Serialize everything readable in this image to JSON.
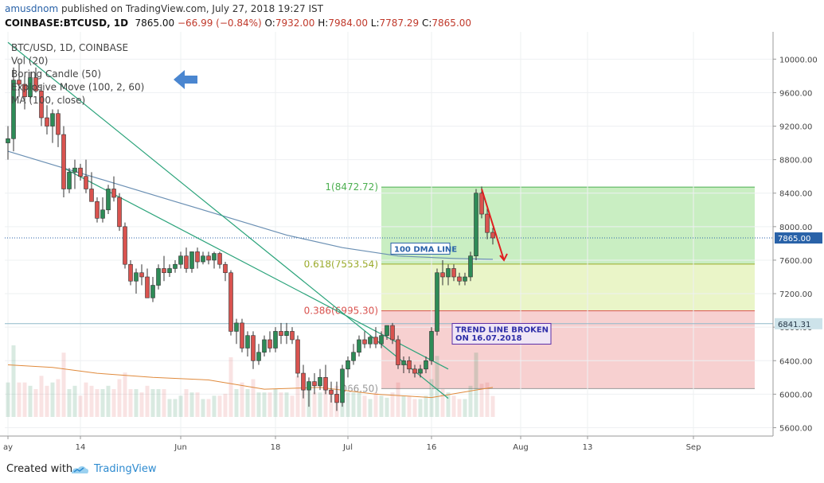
{
  "header": {
    "user": "amusdnom",
    "published": "published on TradingView.com, July 27, 2018 19:27 IST",
    "symbol_line": "COINBASE:BTCUSD, 1D",
    "last": "7865.00",
    "change": "−66.99 (−0.84%)",
    "o_label": "O:",
    "o_value": "7932.00",
    "h_label": "H:",
    "h_value": "7984.00",
    "l_label": "L:",
    "l_value": "7787.29",
    "c_label": "C:",
    "c_value": "7865.00"
  },
  "legend": [
    "BTC/USD, 1D, COINBASE",
    "Vol (20)",
    "Boring Candle (50)",
    "Explosive Move (100, 2, 60)",
    "MA (100, close)"
  ],
  "footer": {
    "created_with": "Created with",
    "brand": "TradingView"
  },
  "colors": {
    "up": "#2e8b57",
    "down": "#d9534f",
    "accent": "#2962a8",
    "ma": "#6a8fb3",
    "volma": "#e08a3c",
    "trend": "#2aa37a",
    "fib_green": "#c9eec2",
    "fib_yellow": "#eaf5c8",
    "fib_red": "#f7d0d0"
  },
  "chart_data": {
    "type": "candlestick",
    "y_ticks": [
      "10000.00",
      "9600.00",
      "9200.00",
      "8800.00",
      "8400.00",
      "8000.00",
      "7600.00",
      "7200.00",
      "6800.00",
      "6400.00",
      "6000.00",
      "5600.00"
    ],
    "ylim": [
      5500,
      10250
    ],
    "x_labels": [
      {
        "label": "ay",
        "day": 0
      },
      {
        "label": "14",
        "day": 13
      },
      {
        "label": "Jun",
        "day": 31
      },
      {
        "label": "18",
        "day": 48
      },
      {
        "label": "Jul",
        "day": 61
      },
      {
        "label": "16",
        "day": 76
      },
      {
        "label": "Aug",
        "day": 92
      },
      {
        "label": "13",
        "day": 104
      },
      {
        "label": "Sep",
        "day": 123
      }
    ],
    "candles": [
      {
        "o": 9000,
        "h": 9200,
        "l": 8800,
        "c": 9050
      },
      {
        "o": 9050,
        "h": 9900,
        "l": 8900,
        "c": 9750
      },
      {
        "o": 9750,
        "h": 9950,
        "l": 9550,
        "c": 9700
      },
      {
        "o": 9700,
        "h": 9800,
        "l": 9400,
        "c": 9550
      },
      {
        "o": 9550,
        "h": 9850,
        "l": 9500,
        "c": 9780
      },
      {
        "o": 9780,
        "h": 9900,
        "l": 9600,
        "c": 9620
      },
      {
        "o": 9620,
        "h": 9700,
        "l": 9200,
        "c": 9300
      },
      {
        "o": 9300,
        "h": 9450,
        "l": 9100,
        "c": 9200
      },
      {
        "o": 9200,
        "h": 9400,
        "l": 9000,
        "c": 9350
      },
      {
        "o": 9350,
        "h": 9400,
        "l": 8950,
        "c": 9100
      },
      {
        "o": 9100,
        "h": 9200,
        "l": 8350,
        "c": 8450
      },
      {
        "o": 8450,
        "h": 8700,
        "l": 8400,
        "c": 8650
      },
      {
        "o": 8650,
        "h": 8800,
        "l": 8450,
        "c": 8700
      },
      {
        "o": 8700,
        "h": 8750,
        "l": 8550,
        "c": 8600
      },
      {
        "o": 8600,
        "h": 8800,
        "l": 8400,
        "c": 8450
      },
      {
        "o": 8450,
        "h": 8650,
        "l": 8300,
        "c": 8300
      },
      {
        "o": 8300,
        "h": 8350,
        "l": 8050,
        "c": 8100
      },
      {
        "o": 8100,
        "h": 8350,
        "l": 8050,
        "c": 8200
      },
      {
        "o": 8200,
        "h": 8500,
        "l": 8150,
        "c": 8450
      },
      {
        "o": 8450,
        "h": 8600,
        "l": 8300,
        "c": 8350
      },
      {
        "o": 8350,
        "h": 8400,
        "l": 7950,
        "c": 8000
      },
      {
        "o": 8000,
        "h": 8050,
        "l": 7500,
        "c": 7550
      },
      {
        "o": 7550,
        "h": 7600,
        "l": 7300,
        "c": 7350
      },
      {
        "o": 7350,
        "h": 7500,
        "l": 7200,
        "c": 7450
      },
      {
        "o": 7450,
        "h": 7550,
        "l": 7300,
        "c": 7400
      },
      {
        "o": 7400,
        "h": 7500,
        "l": 7150,
        "c": 7150
      },
      {
        "o": 7150,
        "h": 7400,
        "l": 7100,
        "c": 7300
      },
      {
        "o": 7300,
        "h": 7550,
        "l": 7250,
        "c": 7500
      },
      {
        "o": 7500,
        "h": 7650,
        "l": 7350,
        "c": 7450
      },
      {
        "o": 7450,
        "h": 7550,
        "l": 7400,
        "c": 7500
      },
      {
        "o": 7500,
        "h": 7600,
        "l": 7450,
        "c": 7550
      },
      {
        "o": 7550,
        "h": 7700,
        "l": 7500,
        "c": 7650
      },
      {
        "o": 7650,
        "h": 7750,
        "l": 7450,
        "c": 7500
      },
      {
        "o": 7500,
        "h": 7700,
        "l": 7450,
        "c": 7700
      },
      {
        "o": 7700,
        "h": 7750,
        "l": 7500,
        "c": 7580
      },
      {
        "o": 7580,
        "h": 7700,
        "l": 7550,
        "c": 7650
      },
      {
        "o": 7650,
        "h": 7700,
        "l": 7550,
        "c": 7600
      },
      {
        "o": 7600,
        "h": 7700,
        "l": 7500,
        "c": 7680
      },
      {
        "o": 7680,
        "h": 7700,
        "l": 7500,
        "c": 7550
      },
      {
        "o": 7550,
        "h": 7580,
        "l": 7350,
        "c": 7450
      },
      {
        "o": 7450,
        "h": 7480,
        "l": 6700,
        "c": 6750
      },
      {
        "o": 6750,
        "h": 6900,
        "l": 6600,
        "c": 6850
      },
      {
        "o": 6850,
        "h": 6900,
        "l": 6500,
        "c": 6550
      },
      {
        "o": 6550,
        "h": 6750,
        "l": 6450,
        "c": 6700
      },
      {
        "o": 6700,
        "h": 6750,
        "l": 6300,
        "c": 6400
      },
      {
        "o": 6400,
        "h": 6600,
        "l": 6350,
        "c": 6500
      },
      {
        "o": 6500,
        "h": 6700,
        "l": 6450,
        "c": 6650
      },
      {
        "o": 6650,
        "h": 6750,
        "l": 6500,
        "c": 6550
      },
      {
        "o": 6550,
        "h": 6800,
        "l": 6500,
        "c": 6750
      },
      {
        "o": 6750,
        "h": 6850,
        "l": 6600,
        "c": 6700
      },
      {
        "o": 6700,
        "h": 6850,
        "l": 6600,
        "c": 6750
      },
      {
        "o": 6750,
        "h": 6800,
        "l": 6600,
        "c": 6650
      },
      {
        "o": 6650,
        "h": 6700,
        "l": 6200,
        "c": 6250
      },
      {
        "o": 6250,
        "h": 6350,
        "l": 5950,
        "c": 6050
      },
      {
        "o": 6050,
        "h": 6200,
        "l": 5850,
        "c": 6150
      },
      {
        "o": 6150,
        "h": 6250,
        "l": 6000,
        "c": 6100
      },
      {
        "o": 6100,
        "h": 6300,
        "l": 6050,
        "c": 6200
      },
      {
        "o": 6200,
        "h": 6350,
        "l": 6000,
        "c": 6050
      },
      {
        "o": 6050,
        "h": 6150,
        "l": 5900,
        "c": 6000
      },
      {
        "o": 6000,
        "h": 6150,
        "l": 5800,
        "c": 5900
      },
      {
        "o": 5900,
        "h": 6350,
        "l": 5850,
        "c": 6300
      },
      {
        "o": 6300,
        "h": 6450,
        "l": 6200,
        "c": 6400
      },
      {
        "o": 6400,
        "h": 6600,
        "l": 6350,
        "c": 6500
      },
      {
        "o": 6500,
        "h": 6700,
        "l": 6450,
        "c": 6650
      },
      {
        "o": 6650,
        "h": 6750,
        "l": 6550,
        "c": 6600
      },
      {
        "o": 6600,
        "h": 6700,
        "l": 6550,
        "c": 6680
      },
      {
        "o": 6680,
        "h": 6800,
        "l": 6550,
        "c": 6600
      },
      {
        "o": 6600,
        "h": 6750,
        "l": 6550,
        "c": 6700
      },
      {
        "o": 6700,
        "h": 6820,
        "l": 6650,
        "c": 6820
      },
      {
        "o": 6820,
        "h": 6850,
        "l": 6600,
        "c": 6650
      },
      {
        "o": 6650,
        "h": 6700,
        "l": 6300,
        "c": 6350
      },
      {
        "o": 6350,
        "h": 6450,
        "l": 6250,
        "c": 6400
      },
      {
        "o": 6400,
        "h": 6450,
        "l": 6250,
        "c": 6300
      },
      {
        "o": 6300,
        "h": 6350,
        "l": 6200,
        "c": 6250
      },
      {
        "o": 6250,
        "h": 6350,
        "l": 6200,
        "c": 6300
      },
      {
        "o": 6300,
        "h": 6450,
        "l": 6250,
        "c": 6400
      },
      {
        "o": 6400,
        "h": 6800,
        "l": 6350,
        "c": 6750
      },
      {
        "o": 6750,
        "h": 7500,
        "l": 6700,
        "c": 7450
      },
      {
        "o": 7450,
        "h": 7600,
        "l": 7300,
        "c": 7400
      },
      {
        "o": 7400,
        "h": 7550,
        "l": 7300,
        "c": 7500
      },
      {
        "o": 7500,
        "h": 7550,
        "l": 7350,
        "c": 7400
      },
      {
        "o": 7400,
        "h": 7450,
        "l": 7300,
        "c": 7350
      },
      {
        "o": 7350,
        "h": 7450,
        "l": 7300,
        "c": 7400
      },
      {
        "o": 7400,
        "h": 7700,
        "l": 7350,
        "c": 7650
      },
      {
        "o": 7650,
        "h": 8450,
        "l": 7600,
        "c": 8400
      },
      {
        "o": 8400,
        "h": 8480,
        "l": 8100,
        "c": 8150
      },
      {
        "o": 8150,
        "h": 8250,
        "l": 7850,
        "c": 7930
      },
      {
        "o": 7932,
        "h": 7984,
        "l": 7787.29,
        "c": 7865
      }
    ],
    "ma_100": [
      {
        "day": 0,
        "v": 8900
      },
      {
        "day": 10,
        "v": 8700
      },
      {
        "day": 20,
        "v": 8500
      },
      {
        "day": 30,
        "v": 8300
      },
      {
        "day": 40,
        "v": 8100
      },
      {
        "day": 50,
        "v": 7900
      },
      {
        "day": 60,
        "v": 7750
      },
      {
        "day": 70,
        "v": 7650
      },
      {
        "day": 80,
        "v": 7620
      },
      {
        "day": 87,
        "v": 7610
      }
    ],
    "vol_ma": [
      {
        "day": 0,
        "v": 6350
      },
      {
        "day": 8,
        "v": 6320
      },
      {
        "day": 16,
        "v": 6250
      },
      {
        "day": 26,
        "v": 6200
      },
      {
        "day": 36,
        "v": 6170
      },
      {
        "day": 46,
        "v": 6060
      },
      {
        "day": 56,
        "v": 6080
      },
      {
        "day": 66,
        "v": 6000
      },
      {
        "day": 76,
        "v": 5960
      },
      {
        "day": 84,
        "v": 6050
      },
      {
        "day": 87,
        "v": 6080
      }
    ],
    "fib_zone": {
      "day_start": 67,
      "day_end": 134
    },
    "fib_levels": [
      {
        "label": "1(8472.72)",
        "value": 8472.72
      },
      {
        "label": "0.618(7553.54)",
        "value": 7553.54
      },
      {
        "label": "0.386(6995.30)",
        "value": 6995.3
      },
      {
        "label": "066.50)",
        "value": 6066.5
      }
    ],
    "hlines": [
      {
        "value": 7865.0,
        "label": "7865.00"
      },
      {
        "value": 6841.31,
        "label": "6841.31"
      }
    ],
    "trendlines": [
      {
        "d1": 0,
        "v1": 10200,
        "d2": 79,
        "v2": 5950
      },
      {
        "d1": 10,
        "v1": 8700,
        "d2": 79,
        "v2": 6300
      }
    ],
    "annotations": [
      {
        "text": "100 DMA LINE",
        "day": 69,
        "v": 7700
      },
      {
        "text": "TREND LINE BROKEN",
        "day": 80,
        "v": 6740
      },
      {
        "text": "ON 16.07.2018",
        "day": 80,
        "v": 6640
      }
    ]
  }
}
